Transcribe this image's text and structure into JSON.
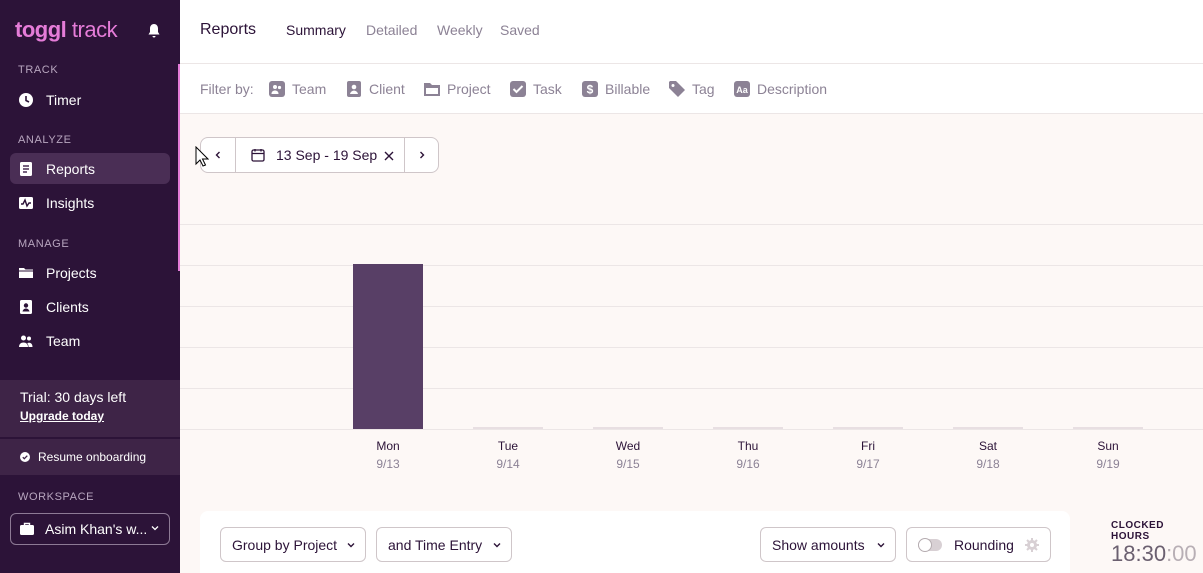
{
  "app": {
    "logo_main": "toggl",
    "logo_sub": "track"
  },
  "sidebar": {
    "sections": {
      "track": "TRACK",
      "analyze": "ANALYZE",
      "manage": "MANAGE",
      "workspace": "WORKSPACE"
    },
    "items": [
      {
        "label": "Timer",
        "icon": "clock-icon"
      },
      {
        "label": "Reports",
        "icon": "reports-icon",
        "active": true
      },
      {
        "label": "Insights",
        "icon": "insights-icon"
      },
      {
        "label": "Projects",
        "icon": "folder-icon"
      },
      {
        "label": "Clients",
        "icon": "client-icon"
      },
      {
        "label": "Team",
        "icon": "team-icon"
      }
    ],
    "trial": {
      "title": "Trial: 30 days left",
      "link": "Upgrade today"
    },
    "onboarding": "Resume onboarding",
    "workspace_name": "Asim Khan's w..."
  },
  "header": {
    "title": "Reports",
    "tabs": [
      "Summary",
      "Detailed",
      "Weekly",
      "Saved"
    ]
  },
  "filters": {
    "label": "Filter by:",
    "items": [
      "Team",
      "Client",
      "Project",
      "Task",
      "Billable",
      "Tag",
      "Description"
    ]
  },
  "date_range": {
    "label": "13 Sep - 19 Sep"
  },
  "chart_data": {
    "type": "bar",
    "categories": [
      "Mon",
      "Tue",
      "Wed",
      "Thu",
      "Fri",
      "Sat",
      "Sun"
    ],
    "dates": [
      "9/13",
      "9/14",
      "9/15",
      "9/16",
      "9/17",
      "9/18",
      "9/19"
    ],
    "values": [
      18.5,
      0,
      0,
      0,
      0,
      0,
      0
    ],
    "max_value": 23
  },
  "controls": {
    "group_by": "Group by Project",
    "sub_group": "and Time Entry",
    "show_amounts": "Show amounts",
    "rounding": "Rounding"
  },
  "clocked": {
    "label": "CLOCKED HOURS",
    "hours": "18:30",
    "seconds": ":00"
  },
  "colors": {
    "sidebar": "#2c1338",
    "accent": "#e57cd8",
    "bar": "#583f66",
    "content_bg": "#fdf8f6"
  }
}
